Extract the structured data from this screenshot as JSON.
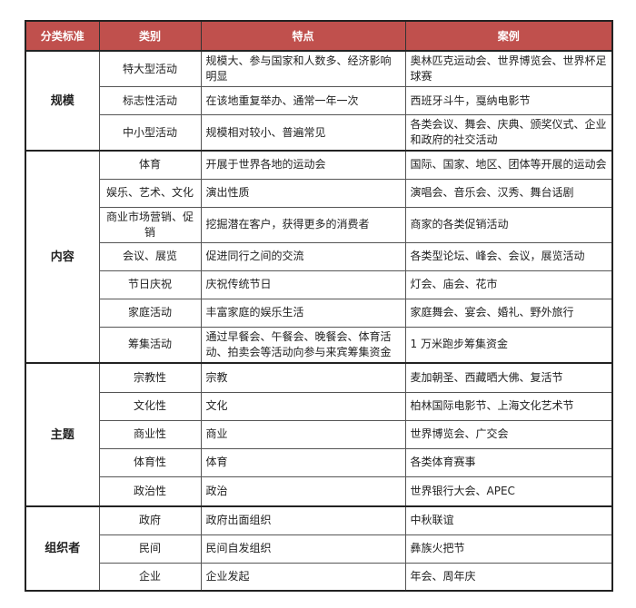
{
  "headers": [
    "分类标准",
    "类别",
    "特点",
    "案例"
  ],
  "colors": {
    "header_bg": "#c0504d",
    "header_text": "#ffffff"
  },
  "groups": [
    {
      "name": "规模",
      "rows": [
        {
          "category": "特大型活动",
          "feature": "规模大、参与国家和人数多、经济影响明显",
          "example": "奥林匹克运动会、世界博览会、世界杯足球赛"
        },
        {
          "category": "标志性活动",
          "feature": "在该地重复举办、通常一年一次",
          "example": "西班牙斗牛，戛纳电影节"
        },
        {
          "category": "中小型活动",
          "feature": "规模相对较小、普遍常见",
          "example": "各类会议、舞会、庆典、颁奖仪式、企业和政府的社交活动"
        }
      ]
    },
    {
      "name": "内容",
      "rows": [
        {
          "category": "体育",
          "feature": "开展于世界各地的运动会",
          "example": "国际、国家、地区、团体等开展的运动会"
        },
        {
          "category": "娱乐、艺术、文化",
          "feature": "演出性质",
          "example": "演唱会、音乐会、汉秀、舞台话剧"
        },
        {
          "category": "商业市场营销、促销",
          "feature": "挖掘潜在客户，获得更多的消费者",
          "example": "商家的各类促销活动"
        },
        {
          "category": "会议、展览",
          "feature": "促进同行之间的交流",
          "example": "各类型论坛、峰会、会议，展览活动"
        },
        {
          "category": "节日庆祝",
          "feature": "庆祝传统节日",
          "example": "灯会、庙会、花市"
        },
        {
          "category": "家庭活动",
          "feature": "丰富家庭的娱乐生活",
          "example": "家庭舞会、宴会、婚礼、野外旅行"
        },
        {
          "category": "筹集活动",
          "feature": "通过早餐会、午餐会、晚餐会、体育活动、拍卖会等活动向参与来宾筹集资金",
          "example": "1 万米跑步筹集资金"
        }
      ]
    },
    {
      "name": "主题",
      "rows": [
        {
          "category": "宗教性",
          "feature": "宗教",
          "example": "麦加朝圣、西藏晒大佛、复活节"
        },
        {
          "category": "文化性",
          "feature": "文化",
          "example": "柏林国际电影节、上海文化艺术节"
        },
        {
          "category": "商业性",
          "feature": "商业",
          "example": "世界博览会、广交会"
        },
        {
          "category": "体育性",
          "feature": "体育",
          "example": "各类体育赛事"
        },
        {
          "category": "政治性",
          "feature": "政治",
          "example": "世界银行大会、APEC"
        }
      ]
    },
    {
      "name": "组织者",
      "rows": [
        {
          "category": "政府",
          "feature": "政府出面组织",
          "example": "中秋联谊"
        },
        {
          "category": "民间",
          "feature": "民间自发组织",
          "example": "彝族火把节"
        },
        {
          "category": "企业",
          "feature": "企业发起",
          "example": "年会、周年庆"
        }
      ]
    }
  ]
}
